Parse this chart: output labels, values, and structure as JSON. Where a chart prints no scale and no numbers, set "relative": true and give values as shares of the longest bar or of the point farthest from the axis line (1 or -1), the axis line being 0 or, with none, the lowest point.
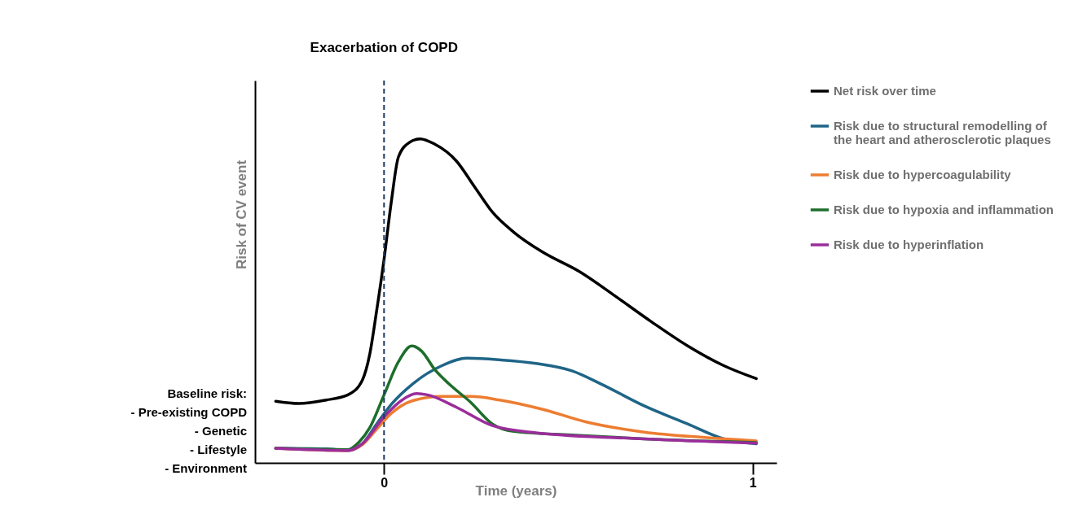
{
  "chart_data": {
    "type": "line",
    "relative": true,
    "xlabel": "Time (years)",
    "ylabel": "Risk of CV event",
    "xlim": [
      -0.35,
      1.065
    ],
    "xticks": [
      0,
      1
    ],
    "tick_labels": "x",
    "grid": false,
    "legend": "right",
    "marker": "none",
    "line_style": "solid",
    "ref_lines": [
      {
        "axis": "x",
        "value": 0,
        "label": "Exacerbation of COPD",
        "color": "#1f3864",
        "line_style": "dashed"
      }
    ],
    "annotations": [
      "Baseline risk:\n- Pre-existing COPD\n- Genetic\n- Lifestyle\n- Environment"
    ],
    "series": [
      {
        "name": "Net risk over time",
        "color": "#000000",
        "x": [
          -0.294,
          -0.231,
          -0.157,
          -0.098,
          -0.059,
          -0.039,
          -0.02,
          0,
          0.02,
          0.039,
          0.069,
          0.098,
          0.137,
          0.196,
          0.245,
          0.294,
          0.353,
          0.431,
          0.529,
          0.627,
          0.725,
          0.824,
          0.922,
          1.01
        ],
        "values": [
          0.19,
          0.183,
          0.194,
          0.21,
          0.255,
          0.334,
          0.47,
          0.628,
          0.808,
          0.944,
          0.989,
          1,
          0.984,
          0.932,
          0.853,
          0.774,
          0.711,
          0.65,
          0.591,
          0.515,
          0.436,
          0.361,
          0.3,
          0.26
        ]
      },
      {
        "name": "Risk due to structural remodelling of the heart and atherosclerotic plaques",
        "color": "#1f6587",
        "x": [
          -0.294,
          -0.157,
          -0.098,
          -0.059,
          -0.02,
          0.02,
          0.078,
          0.157,
          0.225,
          0.314,
          0.412,
          0.51,
          0.588,
          0.706,
          0.824,
          0.922,
          1.01
        ],
        "values": [
          0.045,
          0.043,
          0.038,
          0.059,
          0.12,
          0.181,
          0.244,
          0.3,
          0.323,
          0.318,
          0.307,
          0.284,
          0.244,
          0.176,
          0.12,
          0.074,
          0.059
        ]
      },
      {
        "name": "Risk due to hypercoagulability",
        "color": "#ed7d31",
        "x": [
          -0.294,
          -0.098,
          -0.059,
          -0.02,
          0.02,
          0.078,
          0.157,
          0.235,
          0.314,
          0.431,
          0.549,
          0.706,
          0.863,
          1.01
        ],
        "values": [
          0.045,
          0.038,
          0.056,
          0.104,
          0.153,
          0.192,
          0.205,
          0.205,
          0.194,
          0.165,
          0.126,
          0.095,
          0.079,
          0.068
        ]
      },
      {
        "name": "Risk due to hypoxia and inflammation",
        "color": "#1e6e2b",
        "x": [
          -0.294,
          -0.098,
          -0.069,
          -0.039,
          0,
          0.039,
          0.075,
          0.102,
          0.137,
          0.176,
          0.235,
          0.294,
          0.353,
          0.51,
          0.706,
          1.01
        ],
        "values": [
          0.045,
          0.041,
          0.063,
          0.108,
          0.21,
          0.312,
          0.361,
          0.345,
          0.289,
          0.244,
          0.187,
          0.12,
          0.097,
          0.086,
          0.074,
          0.063
        ]
      },
      {
        "name": "Risk due to hyperinflation",
        "color": "#9b2d9b",
        "x": [
          -0.294,
          -0.098,
          -0.059,
          0,
          0.049,
          0.088,
          0.118,
          0.196,
          0.294,
          0.412,
          0.706,
          1.01
        ],
        "values": [
          0.045,
          0.038,
          0.059,
          0.142,
          0.194,
          0.214,
          0.21,
          0.172,
          0.115,
          0.093,
          0.074,
          0.061
        ]
      }
    ]
  }
}
